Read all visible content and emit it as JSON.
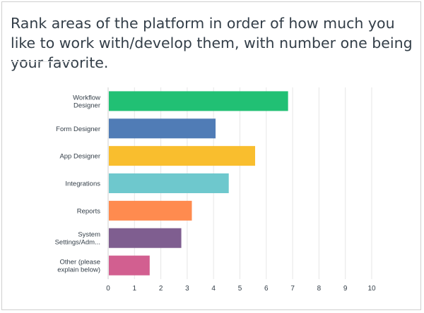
{
  "question": {
    "title": "Rank areas of the platform in order of how much you like to work with/develop them, with number one being your favorite."
  },
  "chart_data": {
    "type": "bar",
    "orientation": "horizontal",
    "categories": [
      [
        "Workflow",
        "Designer"
      ],
      [
        "Form Designer"
      ],
      [
        "App Designer"
      ],
      [
        "Integrations"
      ],
      [
        "Reports"
      ],
      [
        "System",
        "Settings/Adm..."
      ],
      [
        "Other (please",
        "explain below)"
      ]
    ],
    "values": [
      6.8,
      4.05,
      5.55,
      4.55,
      3.15,
      2.75,
      1.55
    ],
    "colors": [
      "#21c074",
      "#507cb6",
      "#f9be2e",
      "#6ec8cd",
      "#ff8b4f",
      "#7f5e90",
      "#d25f90"
    ],
    "xlim": [
      0,
      10
    ],
    "xticks": [
      0,
      1,
      2,
      3,
      4,
      5,
      6,
      7,
      8,
      9,
      10
    ],
    "grid": true,
    "title": "",
    "xlabel": "",
    "ylabel": ""
  }
}
